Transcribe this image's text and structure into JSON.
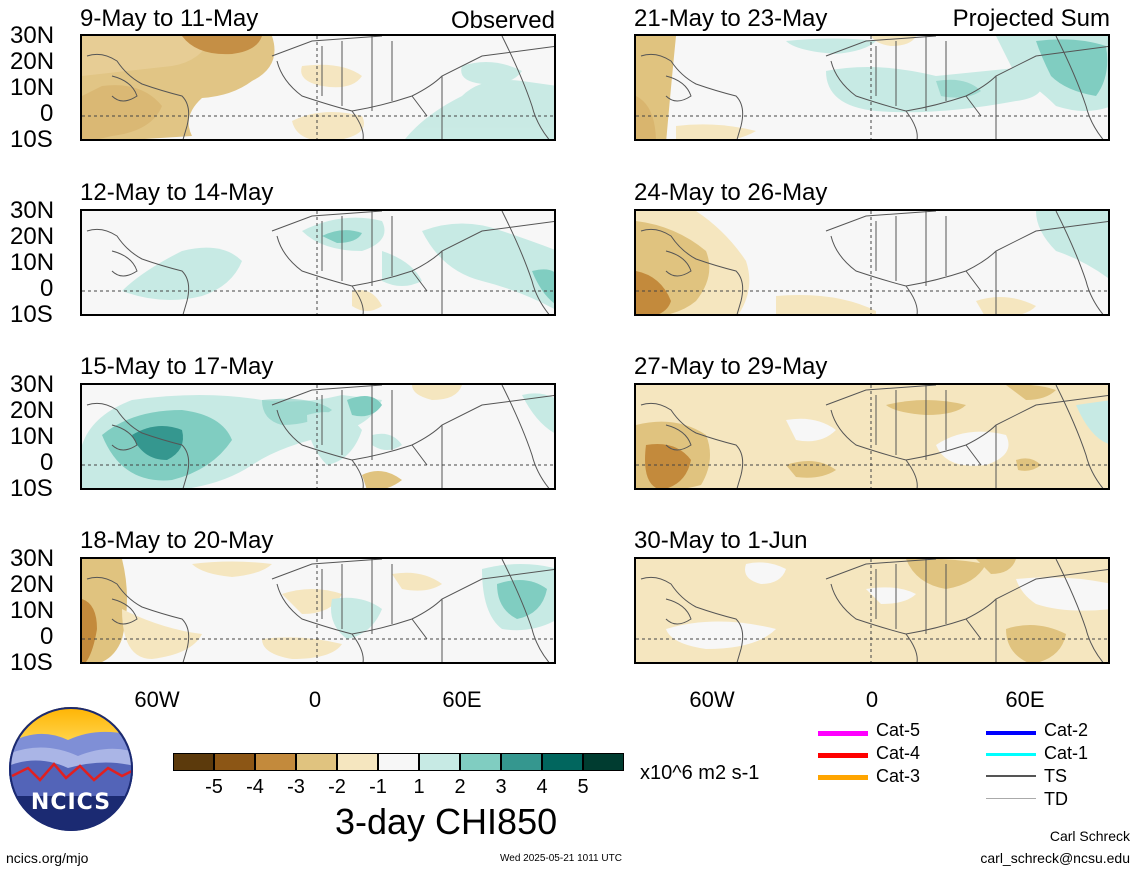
{
  "panels": [
    {
      "title": "9-May to 11-May",
      "tag": "Observed"
    },
    {
      "title": "12-May to 14-May",
      "tag": ""
    },
    {
      "title": "15-May to 17-May",
      "tag": ""
    },
    {
      "title": "18-May to 20-May",
      "tag": ""
    },
    {
      "title": "21-May to 23-May",
      "tag": "Projected Sum"
    },
    {
      "title": "24-May to 26-May",
      "tag": ""
    },
    {
      "title": "27-May to 29-May",
      "tag": ""
    },
    {
      "title": "30-May to 1-Jun",
      "tag": ""
    }
  ],
  "lat_labels": [
    "30N",
    "20N",
    "10N",
    "0",
    "10S"
  ],
  "lon_labels": [
    "60W",
    "0",
    "60E"
  ],
  "colorbar": {
    "colors": [
      "#5c3a0c",
      "#8c5615",
      "#c38a3c",
      "#e0c37f",
      "#f5e6bf",
      "#f7f7f7",
      "#c7eae4",
      "#80cdc1",
      "#35978f",
      "#01665e",
      "#003c30"
    ],
    "ticks": [
      "-5",
      "-4",
      "-3",
      "-2",
      "-1",
      "1",
      "2",
      "3",
      "4",
      "5"
    ],
    "units": "x10^6 m2 s-1",
    "title": "3-day CHI850"
  },
  "legend": [
    {
      "label": "Cat-5",
      "color": "#ff00ff"
    },
    {
      "label": "Cat-4",
      "color": "#ff0000"
    },
    {
      "label": "Cat-3",
      "color": "#ffa500"
    },
    {
      "label": "Cat-2",
      "color": "#0000ff"
    },
    {
      "label": "Cat-1",
      "color": "#00ffff"
    },
    {
      "label": "TS",
      "color": "#555555"
    },
    {
      "label": "TD",
      "color": "#aaaaaa"
    }
  ],
  "logo_text": "NCICS",
  "footer": {
    "site": "ncics.org/mjo",
    "timestamp": "Wed 2025-05-21 1011 UTC",
    "author": "Carl Schreck",
    "email": "carl_schreck@ncsu.edu"
  }
}
